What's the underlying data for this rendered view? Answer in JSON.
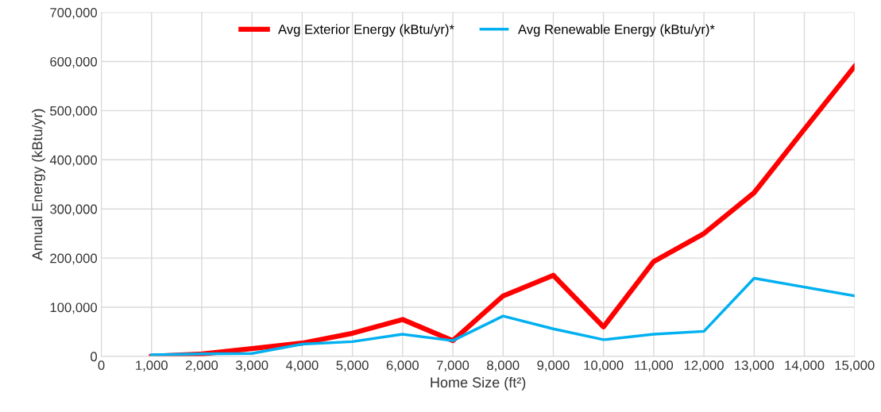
{
  "chart_data": {
    "type": "line",
    "xlabel": "Home Size (ft²)",
    "ylabel": "Annual Energy (kBtu/yr)",
    "x": [
      1000,
      2000,
      3000,
      4000,
      5000,
      6000,
      7000,
      8000,
      9000,
      10000,
      11000,
      12000,
      13000,
      14000,
      15000
    ],
    "series": [
      {
        "name": "Avg Exterior Energy (kBtu/yr)*",
        "color": "#ff0000",
        "values": [
          0,
          5000,
          16000,
          27000,
          47000,
          75000,
          32000,
          123000,
          165000,
          60000,
          193000,
          250000,
          333000,
          462000,
          590000
        ]
      },
      {
        "name": "Avg Renewable Energy (kBtu/yr)*",
        "color": "#00b0f0",
        "values": [
          3000,
          5000,
          6000,
          25000,
          30000,
          45000,
          32000,
          82000,
          56000,
          34000,
          45000,
          51000,
          159000,
          141000,
          123000
        ]
      }
    ],
    "xlim": [
      0,
      15000
    ],
    "xticks": [
      0,
      {
        "value": 1000,
        "label": "1,000"
      },
      {
        "value": 2000,
        "label": "2,000"
      },
      {
        "value": 3000,
        "label": "3,000"
      },
      {
        "value": 4000,
        "label": "4,000"
      },
      {
        "value": 5000,
        "label": "5,000"
      },
      {
        "value": 6000,
        "label": "6,000"
      },
      {
        "value": 7000,
        "label": "7,000"
      },
      {
        "value": 8000,
        "label": "8,000"
      },
      {
        "value": 9000,
        "label": "9,000"
      },
      {
        "value": 10000,
        "label": "10,000"
      },
      {
        "value": 11000,
        "label": "11,000"
      },
      {
        "value": 12000,
        "label": "12,000"
      },
      {
        "value": 13000,
        "label": "13,000"
      },
      {
        "value": 14000,
        "label": "14,000"
      },
      {
        "value": 15000,
        "label": "15,000"
      }
    ],
    "ylim": [
      0,
      700000
    ],
    "yticks": [
      0,
      {
        "value": 100000,
        "label": "100,000"
      },
      {
        "value": 200000,
        "label": "200,000"
      },
      {
        "value": 300000,
        "label": "300,000"
      },
      {
        "value": 400000,
        "label": "400,000"
      },
      {
        "value": 500000,
        "label": "500,000"
      },
      {
        "value": 600000,
        "label": "600,000"
      },
      {
        "value": 700000,
        "label": "700,000"
      }
    ],
    "grid": true,
    "legend": "top",
    "marker": "none",
    "line_style": "solid"
  }
}
